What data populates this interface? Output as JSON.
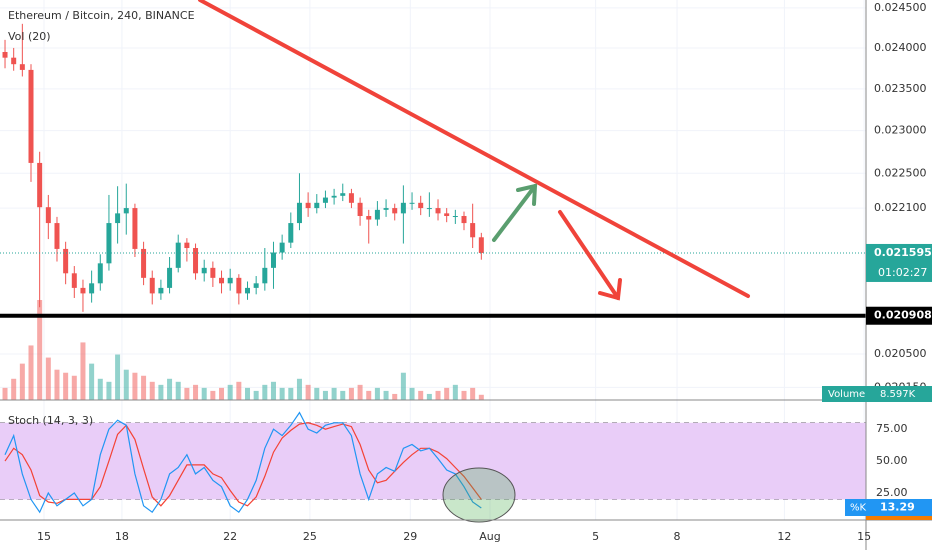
{
  "chart_data": {
    "type": "candlestick",
    "title": "Ethereum / Bitcoin, 240, BINANCE",
    "scale": "log",
    "up_color": "#26a69a",
    "down_color": "#ef5350",
    "open": [
      0.02395,
      0.02388,
      0.0238,
      0.02373,
      0.02262,
      0.02211,
      0.02193,
      0.02164,
      0.02137,
      0.02121,
      0.02115,
      0.02126,
      0.02148,
      0.02193,
      0.02204,
      0.0221,
      0.02164,
      0.02132,
      0.02115,
      0.02121,
      0.02143,
      0.02171,
      0.02165,
      0.02137,
      0.02143,
      0.02132,
      0.02126,
      0.02132,
      0.02115,
      0.02121,
      0.02126,
      0.02143,
      0.0216,
      0.02171,
      0.02193,
      0.02216,
      0.0221,
      0.02216,
      0.02222,
      0.02224,
      0.02227,
      0.02216,
      0.02201,
      0.02197,
      0.02208,
      0.0221,
      0.02204,
      0.02216,
      0.02216,
      0.0221,
      0.0221,
      0.02204,
      0.02201,
      0.02201,
      0.02193,
      0.02177
    ],
    "high": [
      0.0241,
      0.024,
      0.0243,
      0.0238,
      0.02275,
      0.02225,
      0.022,
      0.02172,
      0.02145,
      0.0213,
      0.0214,
      0.02158,
      0.02225,
      0.02235,
      0.02238,
      0.02215,
      0.02172,
      0.0214,
      0.0213,
      0.02155,
      0.0218,
      0.02176,
      0.0217,
      0.02152,
      0.0215,
      0.0214,
      0.02142,
      0.02136,
      0.02128,
      0.02134,
      0.02165,
      0.02172,
      0.0218,
      0.02205,
      0.0225,
      0.02228,
      0.02226,
      0.0223,
      0.02232,
      0.02238,
      0.02232,
      0.02222,
      0.02208,
      0.02218,
      0.0222,
      0.02215,
      0.02236,
      0.02228,
      0.02224,
      0.02228,
      0.0222,
      0.0221,
      0.02208,
      0.02206,
      0.02215,
      0.02182
    ],
    "low": [
      0.02375,
      0.02372,
      0.02365,
      0.0224,
      0.021,
      0.02175,
      0.0215,
      0.02125,
      0.0211,
      0.02095,
      0.02105,
      0.02118,
      0.0214,
      0.0217,
      0.0218,
      0.02155,
      0.02124,
      0.02103,
      0.02108,
      0.02115,
      0.02138,
      0.0215,
      0.0213,
      0.02128,
      0.02122,
      0.02115,
      0.02118,
      0.02103,
      0.02108,
      0.02114,
      0.02118,
      0.0212,
      0.02152,
      0.02165,
      0.02185,
      0.022,
      0.02204,
      0.0221,
      0.02214,
      0.02218,
      0.0221,
      0.0219,
      0.0217,
      0.0219,
      0.022,
      0.02196,
      0.0217,
      0.02208,
      0.02202,
      0.022,
      0.02196,
      0.02194,
      0.02192,
      0.02185,
      0.02165,
      0.02152
    ],
    "close": [
      0.02388,
      0.0238,
      0.02373,
      0.02262,
      0.02211,
      0.02193,
      0.02164,
      0.02137,
      0.02121,
      0.02115,
      0.02126,
      0.02148,
      0.02193,
      0.02204,
      0.0221,
      0.02164,
      0.02132,
      0.02115,
      0.02121,
      0.02143,
      0.02171,
      0.02165,
      0.02137,
      0.02143,
      0.02132,
      0.02126,
      0.02132,
      0.02115,
      0.02121,
      0.02126,
      0.02143,
      0.0216,
      0.02171,
      0.02193,
      0.02216,
      0.0221,
      0.02216,
      0.02222,
      0.02224,
      0.02227,
      0.02216,
      0.02201,
      0.02197,
      0.02208,
      0.0221,
      0.02204,
      0.02216,
      0.02216,
      0.0221,
      0.0221,
      0.02204,
      0.02201,
      0.02201,
      0.02193,
      0.02177,
      0.021595
    ],
    "ylim": [
      0.02002,
      0.0246
    ],
    "yticks": [
      {
        "value": 0.0245,
        "label": "0.024500"
      },
      {
        "value": 0.024,
        "label": "0.024000"
      },
      {
        "value": 0.0235,
        "label": "0.023500"
      },
      {
        "value": 0.023,
        "label": "0.023000"
      },
      {
        "value": 0.0225,
        "label": "0.022500"
      },
      {
        "value": 0.0221,
        "label": "0.022100"
      },
      {
        "value": 0.0205,
        "label": "0.020500"
      },
      {
        "value": 0.02015,
        "label": "0.020150"
      }
    ],
    "xlim": [
      -0.58,
      99.42
    ],
    "xticks": [
      {
        "value": 4.5,
        "label": "15"
      },
      {
        "value": 13.5,
        "label": "18"
      },
      {
        "value": 26,
        "label": "22"
      },
      {
        "value": 35.2,
        "label": "25"
      },
      {
        "value": 46.8,
        "label": "29"
      },
      {
        "value": 56,
        "label": "Aug"
      },
      {
        "value": 68.2,
        "label": "5"
      },
      {
        "value": 77.6,
        "label": "8"
      },
      {
        "value": 90,
        "label": "12"
      },
      {
        "value": 99.2,
        "label": "15"
      }
    ],
    "hline": 0.020908,
    "timer": "01:02:27",
    "volume": {
      "title": "Vol (20)",
      "name": "Volume",
      "last_label": "8.597K",
      "ylim": [
        0,
        165
      ],
      "values": [
        20,
        35,
        60,
        90,
        165,
        70,
        50,
        45,
        40,
        95,
        60,
        35,
        30,
        75,
        50,
        45,
        40,
        30,
        25,
        35,
        30,
        20,
        25,
        20,
        15,
        20,
        25,
        30,
        20,
        15,
        25,
        30,
        20,
        20,
        35,
        25,
        20,
        15,
        20,
        15,
        20,
        25,
        15,
        20,
        15,
        10,
        45,
        20,
        15,
        10,
        15,
        20,
        25,
        15,
        20,
        8.597
      ]
    },
    "stoch": {
      "title": "Stoch (14, 3, 3)",
      "k_name": "%K",
      "k_color": "#2196f3",
      "d_color": "#f44336",
      "ylim": [
        5,
        90
      ],
      "band": [
        20,
        80
      ],
      "yticks": [
        {
          "value": 75,
          "label": "75.00"
        },
        {
          "value": 50,
          "label": "50.00"
        },
        {
          "value": 25,
          "label": "25.00"
        }
      ],
      "k": [
        55,
        70,
        40,
        20,
        10,
        25,
        15,
        20,
        25,
        15,
        20,
        55,
        75,
        82,
        78,
        40,
        15,
        10,
        20,
        40,
        45,
        55,
        40,
        45,
        35,
        30,
        15,
        10,
        20,
        35,
        60,
        75,
        70,
        78,
        88,
        75,
        72,
        78,
        80,
        80,
        70,
        40,
        20,
        40,
        45,
        42,
        60,
        63,
        58,
        60,
        52,
        43,
        40,
        30,
        18,
        13.29
      ],
      "d": [
        50,
        60,
        55,
        43,
        23,
        18,
        17,
        20,
        20,
        20,
        20,
        30,
        50,
        71,
        78,
        67,
        44,
        22,
        15,
        23,
        35,
        47,
        47,
        47,
        40,
        37,
        27,
        18,
        15,
        22,
        38,
        57,
        68,
        74,
        79,
        80,
        78,
        75,
        77,
        79,
        77,
        63,
        43,
        33,
        35,
        42,
        49,
        55,
        60,
        60,
        57,
        52,
        45,
        38,
        29,
        20
      ]
    }
  }
}
